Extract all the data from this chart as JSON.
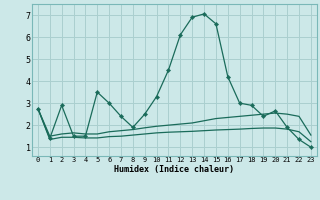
{
  "xlabel": "Humidex (Indice chaleur)",
  "bg_color": "#cce8e8",
  "grid_color": "#aacfcf",
  "line_color": "#1a6b5a",
  "xlim": [
    -0.5,
    23.5
  ],
  "ylim": [
    0.6,
    7.5
  ],
  "xticks": [
    0,
    1,
    2,
    3,
    4,
    5,
    6,
    7,
    8,
    9,
    10,
    11,
    12,
    13,
    14,
    15,
    16,
    17,
    18,
    19,
    20,
    21,
    22,
    23
  ],
  "yticks": [
    1,
    2,
    3,
    4,
    5,
    6,
    7
  ],
  "series1_x": [
    0,
    1,
    2,
    3,
    4,
    5,
    6,
    7,
    8,
    9,
    10,
    11,
    12,
    13,
    14,
    15,
    16,
    17,
    18,
    19,
    20,
    21,
    22,
    23
  ],
  "series1_y": [
    2.75,
    1.4,
    2.9,
    1.5,
    1.5,
    3.5,
    3.0,
    2.4,
    1.9,
    2.5,
    3.3,
    4.5,
    6.1,
    6.9,
    7.05,
    6.6,
    4.2,
    3.0,
    2.9,
    2.4,
    2.65,
    1.9,
    1.35,
    1.0
  ],
  "series2_x": [
    0,
    1,
    2,
    3,
    4,
    5,
    6,
    7,
    8,
    9,
    10,
    11,
    12,
    13,
    14,
    15,
    16,
    17,
    18,
    19,
    20,
    21,
    22,
    23
  ],
  "series2_y": [
    2.75,
    1.5,
    1.6,
    1.65,
    1.6,
    1.6,
    1.7,
    1.75,
    1.8,
    1.88,
    1.95,
    2.0,
    2.05,
    2.1,
    2.2,
    2.3,
    2.35,
    2.4,
    2.45,
    2.5,
    2.55,
    2.5,
    2.4,
    1.55
  ],
  "series3_x": [
    0,
    1,
    2,
    3,
    4,
    5,
    6,
    7,
    8,
    9,
    10,
    11,
    12,
    13,
    14,
    15,
    16,
    17,
    18,
    19,
    20,
    21,
    22,
    23
  ],
  "series3_y": [
    2.75,
    1.35,
    1.45,
    1.45,
    1.42,
    1.42,
    1.48,
    1.5,
    1.55,
    1.6,
    1.65,
    1.68,
    1.7,
    1.72,
    1.75,
    1.78,
    1.8,
    1.82,
    1.85,
    1.87,
    1.87,
    1.82,
    1.7,
    1.25
  ]
}
